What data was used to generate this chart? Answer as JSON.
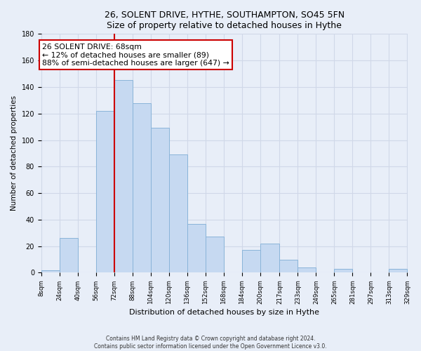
{
  "title": "26, SOLENT DRIVE, HYTHE, SOUTHAMPTON, SO45 5FN",
  "subtitle": "Size of property relative to detached houses in Hythe",
  "xlabel": "Distribution of detached houses by size in Hythe",
  "ylabel": "Number of detached properties",
  "bar_lefts": [
    8,
    24,
    40,
    56,
    72,
    88,
    104,
    120,
    136,
    152,
    168,
    184,
    200,
    217,
    233,
    249,
    265,
    281,
    297,
    313
  ],
  "bar_rights": [
    24,
    40,
    56,
    72,
    88,
    104,
    120,
    136,
    152,
    168,
    184,
    200,
    217,
    233,
    249,
    265,
    281,
    297,
    313,
    329
  ],
  "counts": [
    2,
    26,
    0,
    122,
    145,
    128,
    109,
    89,
    37,
    27,
    0,
    17,
    22,
    10,
    4,
    0,
    3,
    0,
    0,
    3
  ],
  "bar_color": "#c6d9f1",
  "bar_edge_color": "#8ab4d9",
  "annotation_text_line1": "26 SOLENT DRIVE: 68sqm",
  "annotation_text_line2": "← 12% of detached houses are smaller (89)",
  "annotation_text_line3": "88% of semi-detached houses are larger (647) →",
  "annotation_box_color": "#ffffff",
  "annotation_border_color": "#cc0000",
  "vline_color": "#cc0000",
  "vline_x": 72,
  "ylim": [
    0,
    180
  ],
  "yticks": [
    0,
    20,
    40,
    60,
    80,
    100,
    120,
    140,
    160,
    180
  ],
  "xtick_positions": [
    8,
    24,
    40,
    56,
    72,
    88,
    104,
    120,
    136,
    152,
    168,
    184,
    200,
    217,
    233,
    249,
    265,
    281,
    297,
    313,
    329
  ],
  "xtick_labels": [
    "8sqm",
    "24sqm",
    "40sqm",
    "56sqm",
    "72sqm",
    "88sqm",
    "104sqm",
    "120sqm",
    "136sqm",
    "152sqm",
    "168sqm",
    "184sqm",
    "200sqm",
    "217sqm",
    "233sqm",
    "249sqm",
    "265sqm",
    "281sqm",
    "297sqm",
    "313sqm",
    "329sqm"
  ],
  "grid_color": "#d0d8e8",
  "background_color": "#e8eef8",
  "xlim_left": 8,
  "xlim_right": 329,
  "footnote1": "Contains HM Land Registry data © Crown copyright and database right 2024.",
  "footnote2": "Contains public sector information licensed under the Open Government Licence v3.0."
}
